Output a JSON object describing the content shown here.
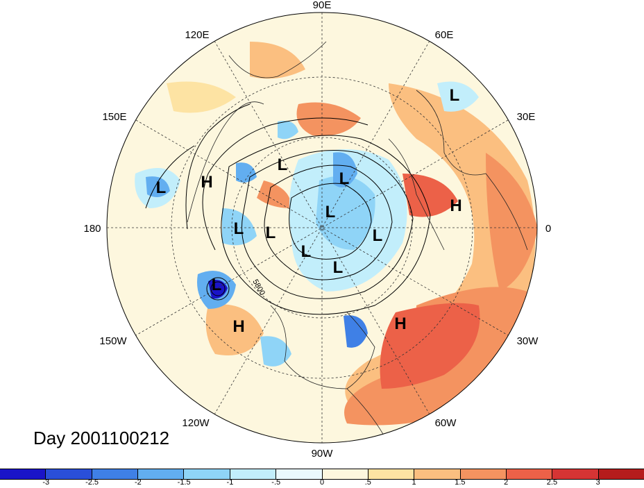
{
  "title": "Day 2001100212",
  "contour_label": "5800",
  "lon_labels": {
    "n90e": "90E",
    "n60e": "60E",
    "n30e": "30E",
    "zero": "0",
    "w30": "30W",
    "w60": "60W",
    "w90": "90W",
    "w120": "120W",
    "w150": "150W",
    "e180": "180",
    "e150": "150E",
    "e120": "120E"
  },
  "pressure_centers": [
    "L",
    "H",
    "L",
    "L",
    "L",
    "L",
    "L",
    "L",
    "L",
    "L",
    "L",
    "L",
    "H",
    "H",
    "H"
  ],
  "colorbar": {
    "colors": [
      "#1a14c8",
      "#2a4fd9",
      "#3f80e6",
      "#62aef0",
      "#8fd4f7",
      "#c2eefb",
      "#eaf9fd",
      "#fdf7de",
      "#fde3a3",
      "#fbbf80",
      "#f49360",
      "#ec6148",
      "#d63434",
      "#b51c1c"
    ],
    "ticks": [
      "-3",
      "-2.5",
      "-2",
      "-1.5",
      "-1",
      "-.5",
      "0",
      ".5",
      "1",
      "1.5",
      "2",
      "2.5",
      "3"
    ]
  }
}
